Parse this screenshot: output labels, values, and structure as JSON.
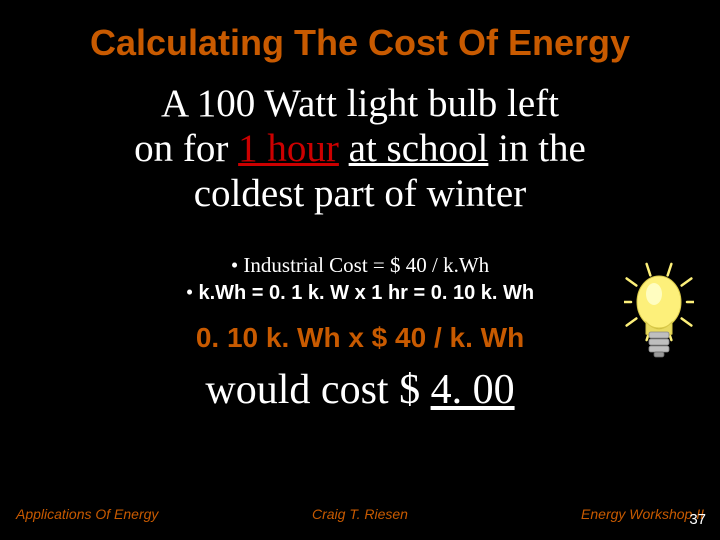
{
  "colors": {
    "background": "#000000",
    "accent": "#c85a00",
    "text": "#ffffff",
    "red": "#cc0000",
    "bulb_body": "#fdf07a",
    "bulb_light": "#ffffcc",
    "bulb_base": "#bfbfbf",
    "bulb_ray": "#fdf07a"
  },
  "typography": {
    "title_fontsize": 36,
    "scenario_fontsize": 39,
    "bullet_fontsize": 21,
    "calc_fontsize": 28,
    "result_fontsize": 42,
    "footer_fontsize": 14,
    "pagenum_fontsize": 15
  },
  "title": "Calculating The Cost Of Energy",
  "scenario": {
    "line1_pre": "A 100 Watt light bulb left",
    "line2_pre": "on for ",
    "line2_red_underline": "1 hour",
    "line2_mid": " ",
    "line2_underline": "at school",
    "line2_post": " in the",
    "line3": "coldest part of winter"
  },
  "bullets": {
    "b1": "•   Industrial Cost = $ 40 / k.Wh",
    "b2_pre": "•  ",
    "b2_bold": "k.Wh = 0. 1 k. W x 1 hr  =  0. 10 k. Wh"
  },
  "calc": "0. 10 k. Wh  x  $ 40 / k. Wh",
  "result": {
    "pre": "would cost $ ",
    "underline": "4. 00"
  },
  "footer": {
    "left": "Applications Of Energy",
    "center": "Craig T. Riesen",
    "right": "Energy Workshop II"
  },
  "pagenum": "37",
  "bulb": {
    "rays": 10,
    "ray_length": 12,
    "ray_width": 2.5
  }
}
